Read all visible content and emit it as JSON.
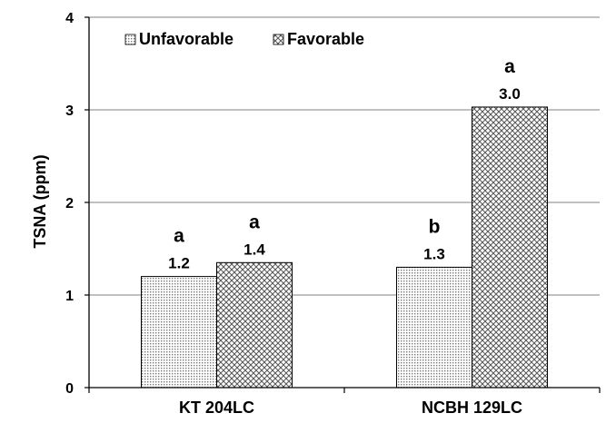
{
  "chart_data": {
    "type": "bar",
    "categories": [
      "KT 204LC",
      "NCBH 129LC"
    ],
    "series": [
      {
        "name": "Unfavorable",
        "values": [
          1.2,
          1.3
        ],
        "value_labels": [
          "1.2",
          "1.3"
        ],
        "letters": [
          "a",
          "b"
        ],
        "pattern": "fine-dots"
      },
      {
        "name": "Favorable",
        "values": [
          1.35,
          3.03
        ],
        "value_labels": [
          "1.4",
          "3.0"
        ],
        "letters": [
          "a",
          "a"
        ],
        "pattern": "crosshatch"
      }
    ],
    "xlabel": "",
    "ylabel": "TSNA (ppm)",
    "ylim": [
      0,
      4
    ],
    "yticks": [
      "0",
      "1",
      "2",
      "3",
      "4"
    ],
    "grid": "horizontal",
    "legend_position": "top-left",
    "colors": {
      "grid": "#808080",
      "axis": "#000000",
      "bar_fill": "#ffffff",
      "pattern": "#555555"
    }
  }
}
